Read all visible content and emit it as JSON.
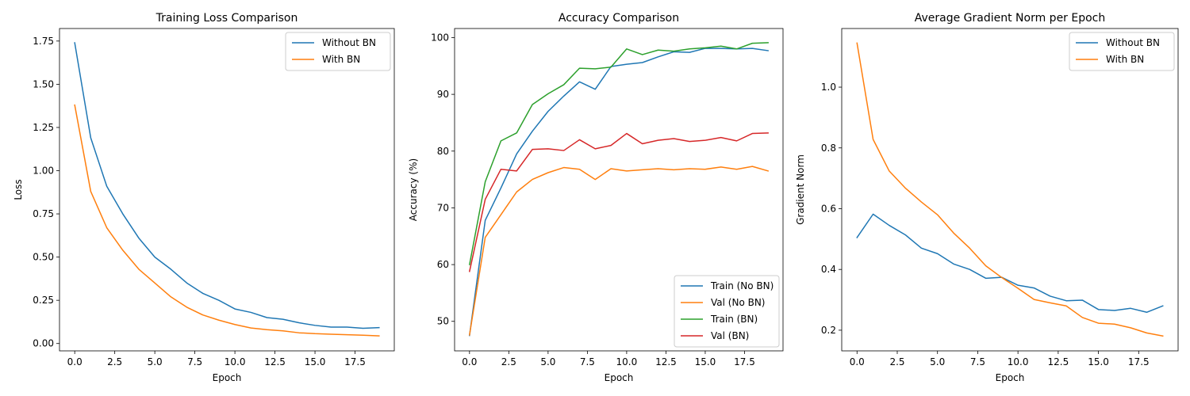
{
  "chart_data": [
    {
      "type": "line",
      "title": "Training Loss Comparison",
      "xlabel": "Epoch",
      "ylabel": "Loss",
      "xlim": [
        -0.95,
        19.95
      ],
      "ylim": [
        -0.0425,
        1.8225
      ],
      "xticks": [
        0,
        2.5,
        5,
        7.5,
        10,
        12.5,
        15,
        17.5
      ],
      "xtick_labels": [
        "0.0",
        "2.5",
        "5.0",
        "7.5",
        "10.0",
        "12.5",
        "15.0",
        "17.5"
      ],
      "yticks": [
        0,
        0.25,
        0.5,
        0.75,
        1.0,
        1.25,
        1.5,
        1.75
      ],
      "ytick_labels": [
        "0.00",
        "0.25",
        "0.50",
        "0.75",
        "1.00",
        "1.25",
        "1.50",
        "1.75"
      ],
      "legend_position": "top-right",
      "x": [
        0,
        1,
        2,
        3,
        4,
        5,
        6,
        7,
        8,
        9,
        10,
        11,
        12,
        13,
        14,
        15,
        16,
        17,
        18,
        19
      ],
      "series": [
        {
          "name": "Without BN",
          "color": "#1f77b4",
          "values": [
            1.74,
            1.19,
            0.91,
            0.75,
            0.61,
            0.5,
            0.43,
            0.35,
            0.29,
            0.25,
            0.2,
            0.18,
            0.15,
            0.14,
            0.12,
            0.105,
            0.095,
            0.095,
            0.088,
            0.092
          ]
        },
        {
          "name": "With BN",
          "color": "#ff7f0e",
          "values": [
            1.38,
            0.88,
            0.67,
            0.54,
            0.43,
            0.35,
            0.27,
            0.21,
            0.165,
            0.135,
            0.11,
            0.09,
            0.08,
            0.073,
            0.062,
            0.057,
            0.054,
            0.051,
            0.048,
            0.044
          ]
        }
      ]
    },
    {
      "type": "line",
      "title": "Accuracy Comparison",
      "xlabel": "Epoch",
      "ylabel": "Accuracy (%)",
      "xlim": [
        -0.95,
        19.95
      ],
      "ylim": [
        44.8,
        101.6
      ],
      "xticks": [
        0,
        2.5,
        5,
        7.5,
        10,
        12.5,
        15,
        17.5
      ],
      "xtick_labels": [
        "0.0",
        "2.5",
        "5.0",
        "7.5",
        "10.0",
        "12.5",
        "15.0",
        "17.5"
      ],
      "yticks": [
        50,
        60,
        70,
        80,
        90,
        100
      ],
      "ytick_labels": [
        "50",
        "60",
        "70",
        "80",
        "90",
        "100"
      ],
      "legend_position": "bottom-right",
      "x": [
        0,
        1,
        2,
        3,
        4,
        5,
        6,
        7,
        8,
        9,
        10,
        11,
        12,
        13,
        14,
        15,
        16,
        17,
        18,
        19
      ],
      "series": [
        {
          "name": "Train (No BN)",
          "color": "#1f77b4",
          "values": [
            47.5,
            67.8,
            73.5,
            79.5,
            83.5,
            87.0,
            89.7,
            92.2,
            90.9,
            94.9,
            95.3,
            95.6,
            96.6,
            97.5,
            97.4,
            98.1,
            98.1,
            98.0,
            98.1,
            97.7
          ]
        },
        {
          "name": "Val (No BN)",
          "color": "#ff7f0e",
          "values": [
            47.6,
            64.8,
            68.8,
            72.8,
            75.0,
            76.2,
            77.1,
            76.8,
            75.0,
            76.9,
            76.5,
            76.7,
            76.9,
            76.7,
            76.9,
            76.8,
            77.2,
            76.8,
            77.3,
            76.5
          ]
        },
        {
          "name": "Train (BN)",
          "color": "#2ca02c",
          "values": [
            60.0,
            74.6,
            81.8,
            83.2,
            88.2,
            90.1,
            91.7,
            94.6,
            94.5,
            94.8,
            98.0,
            97.0,
            97.8,
            97.6,
            98.0,
            98.2,
            98.5,
            98.0,
            99.0,
            99.1
          ]
        },
        {
          "name": "Val (BN)",
          "color": "#d62728",
          "values": [
            58.8,
            71.5,
            76.8,
            76.5,
            80.3,
            80.4,
            80.1,
            82.0,
            80.4,
            81.0,
            83.1,
            81.3,
            81.9,
            82.2,
            81.7,
            81.9,
            82.4,
            81.8,
            83.1,
            83.2
          ]
        }
      ]
    },
    {
      "type": "line",
      "title": "Average Gradient Norm per Epoch",
      "xlabel": "Epoch",
      "ylabel": "Gradient Norm",
      "xlim": [
        -0.95,
        19.95
      ],
      "ylim": [
        0.132,
        1.193
      ],
      "xticks": [
        0,
        2.5,
        5,
        7.5,
        10,
        12.5,
        15,
        17.5
      ],
      "xtick_labels": [
        "0.0",
        "2.5",
        "5.0",
        "7.5",
        "10.0",
        "12.5",
        "15.0",
        "17.5"
      ],
      "yticks": [
        0.2,
        0.4,
        0.6,
        0.8,
        1.0
      ],
      "ytick_labels": [
        "0.2",
        "0.4",
        "0.6",
        "0.8",
        "1.0"
      ],
      "legend_position": "top-right",
      "x": [
        0,
        1,
        2,
        3,
        4,
        5,
        6,
        7,
        8,
        9,
        10,
        11,
        12,
        13,
        14,
        15,
        16,
        17,
        18,
        19
      ],
      "series": [
        {
          "name": "Without BN",
          "color": "#1f77b4",
          "values": [
            0.505,
            0.582,
            0.545,
            0.514,
            0.47,
            0.452,
            0.418,
            0.4,
            0.371,
            0.374,
            0.348,
            0.339,
            0.312,
            0.297,
            0.299,
            0.268,
            0.265,
            0.272,
            0.259,
            0.28
          ]
        },
        {
          "name": "With BN",
          "color": "#ff7f0e",
          "values": [
            1.145,
            0.828,
            0.724,
            0.668,
            0.622,
            0.58,
            0.52,
            0.47,
            0.412,
            0.373,
            0.338,
            0.301,
            0.29,
            0.28,
            0.242,
            0.223,
            0.22,
            0.208,
            0.191,
            0.181
          ]
        }
      ]
    }
  ]
}
